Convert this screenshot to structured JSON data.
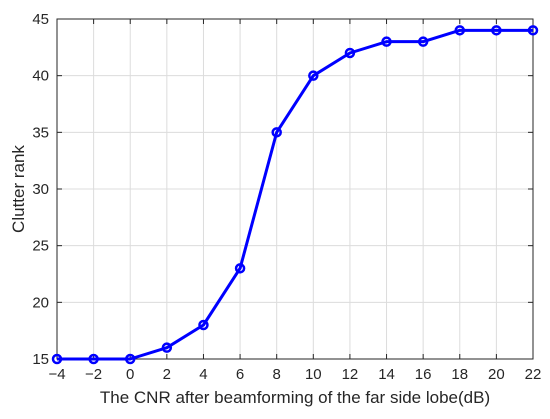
{
  "chart_data": {
    "type": "line",
    "title": "",
    "xlabel": "The CNR after beamforming of the far side lobe(dB)",
    "ylabel": "Clutter rank",
    "xlim": [
      -4,
      22
    ],
    "ylim": [
      15,
      45
    ],
    "xticks": [
      -4,
      -2,
      0,
      2,
      4,
      6,
      8,
      10,
      12,
      14,
      16,
      18,
      20,
      22
    ],
    "yticks": [
      15,
      20,
      25,
      30,
      35,
      40,
      45
    ],
    "xtick_labels": [
      "−4",
      "−2",
      "0",
      "2",
      "4",
      "6",
      "8",
      "10",
      "12",
      "14",
      "16",
      "18",
      "20",
      "22"
    ],
    "ytick_labels": [
      "15",
      "20",
      "25",
      "30",
      "35",
      "40",
      "45"
    ],
    "grid": true,
    "series": [
      {
        "color": "#0000ff",
        "marker": "circle",
        "x": [
          -4,
          -2,
          0,
          2,
          4,
          6,
          8,
          10,
          12,
          14,
          16,
          18,
          20,
          22
        ],
        "y": [
          15,
          15,
          15,
          16,
          18,
          23,
          35,
          40,
          42,
          43,
          43,
          44,
          44,
          44
        ]
      }
    ]
  }
}
